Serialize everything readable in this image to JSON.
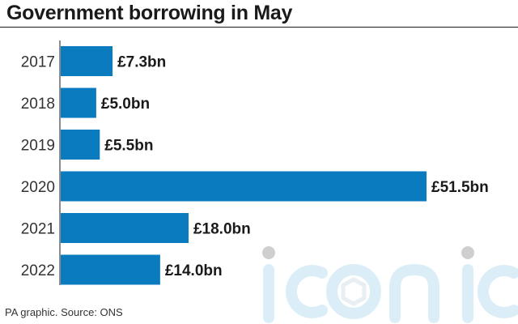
{
  "title": "Government borrowing in May",
  "source": "PA graphic. Source: ONS",
  "watermark": {
    "text": "iconic"
  },
  "colors": {
    "bar": "#0a7bbf",
    "axis": "#1a1a1a",
    "label": "#1a1a1a",
    "tick": "#333333"
  },
  "chart_data": {
    "type": "bar",
    "orientation": "horizontal",
    "categories": [
      "2017",
      "2018",
      "2019",
      "2020",
      "2021",
      "2022"
    ],
    "values": [
      7.3,
      5.0,
      5.5,
      51.5,
      18.0,
      14.0
    ],
    "data_labels": [
      "£7.3bn",
      "£5.0bn",
      "£5.5bn",
      "£51.5bn",
      "£18.0bn",
      "£14.0bn"
    ],
    "title": "Government borrowing in May",
    "xlabel": "",
    "ylabel": "",
    "xlim": [
      0,
      51.5
    ],
    "grid": false,
    "legend": "none"
  }
}
